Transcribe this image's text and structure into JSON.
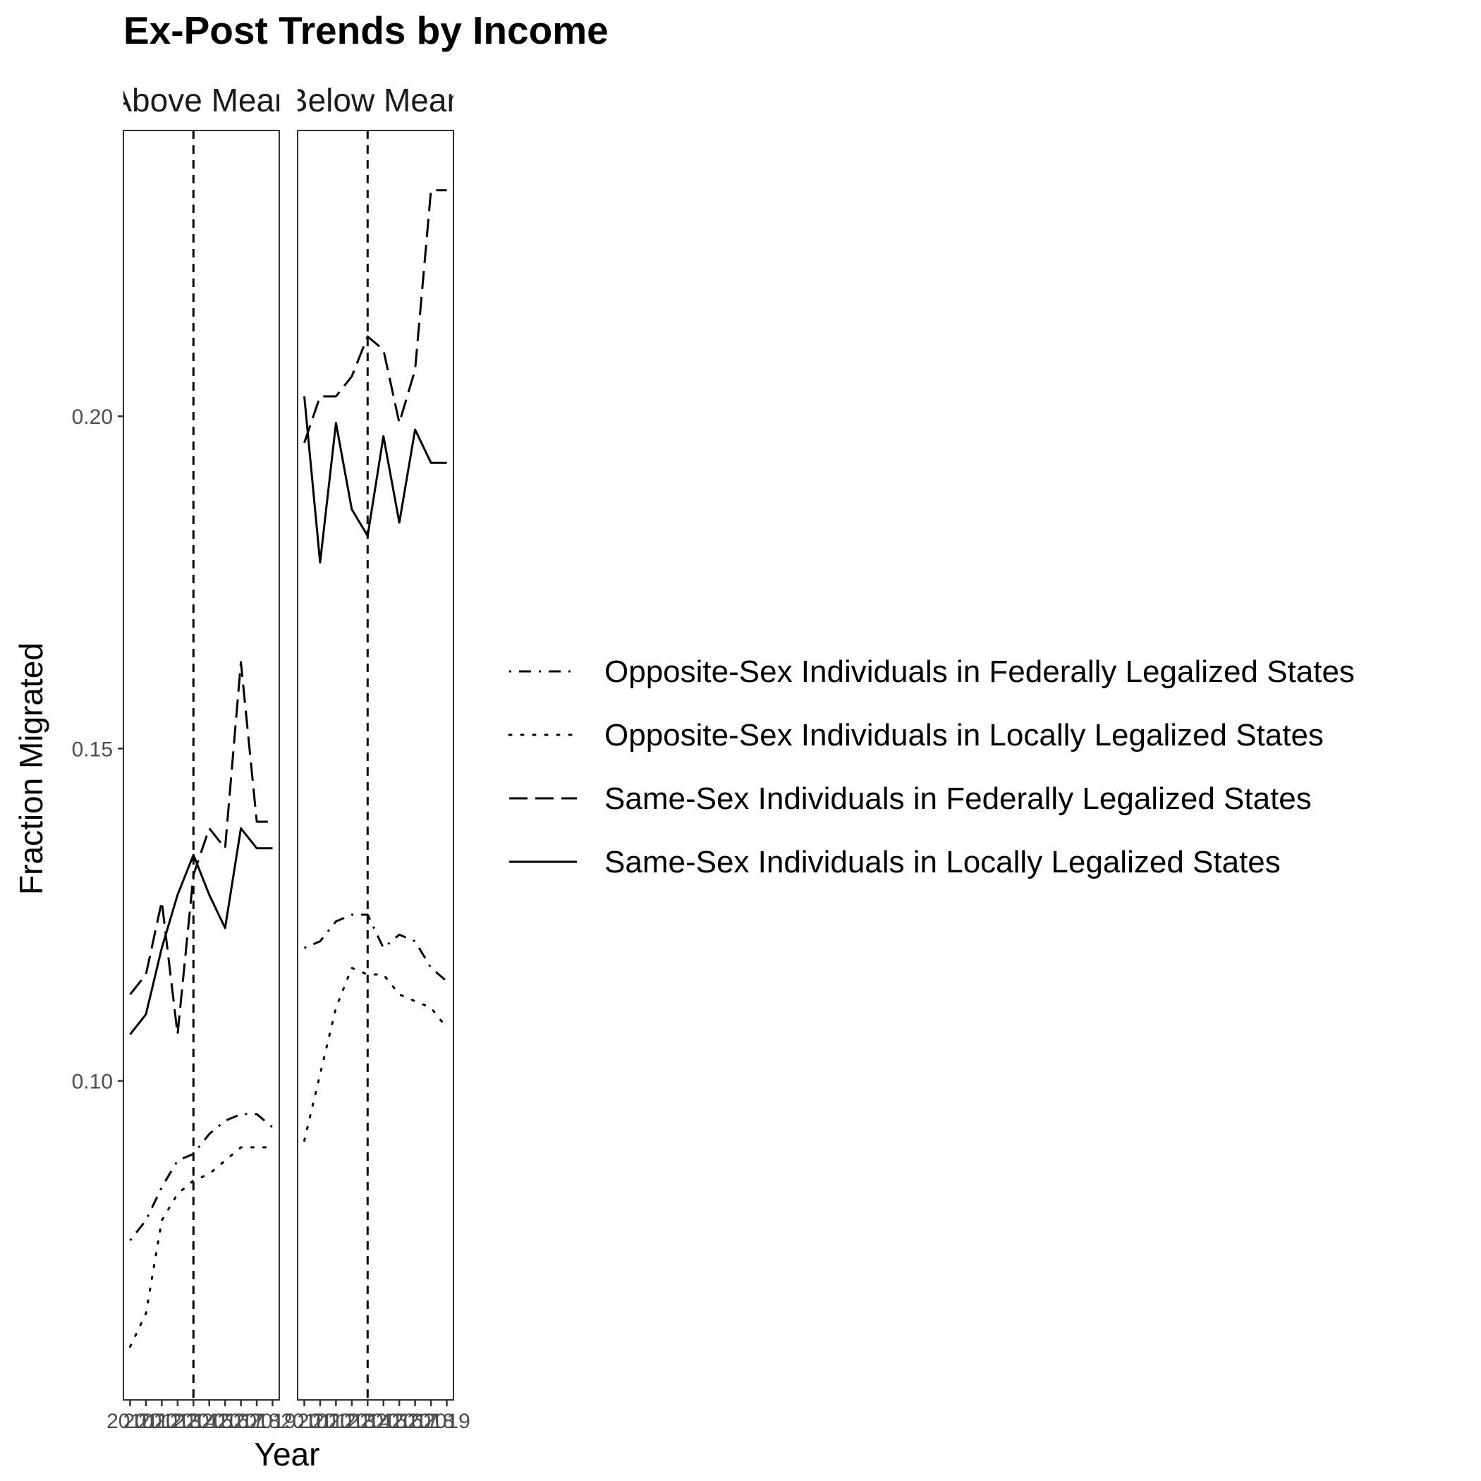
{
  "chart_data": {
    "type": "line",
    "title": "Ex-Post Trends by Income",
    "xlabel": "Year",
    "ylabel": "Fraction Migrated",
    "x": [
      2010,
      2011,
      2012,
      2013,
      2014,
      2015,
      2016,
      2017,
      2018,
      2019
    ],
    "x_tick_labels": [
      "2010",
      "2011",
      "2012",
      "2013",
      "2014",
      "2015",
      "2016",
      "2017",
      "2018",
      "2019"
    ],
    "ylim": [
      0.052,
      0.243
    ],
    "y_ticks": [
      0.1,
      0.15,
      0.2
    ],
    "y_tick_labels": [
      "0.10",
      "0.15",
      "0.20"
    ],
    "reference_line_x": 2014,
    "grid": false,
    "legend_position": "right",
    "legend_entries": [
      {
        "label": "Opposite-Sex Individuals in Federally Legalized States",
        "style": "dotdash"
      },
      {
        "label": "Opposite-Sex Individuals in Locally Legalized States",
        "style": "dotted"
      },
      {
        "label": "Same-Sex Individuals in Federally Legalized States",
        "style": "longdash"
      },
      {
        "label": "Same-Sex Individuals in Locally Legalized States",
        "style": "solid"
      }
    ],
    "panels": [
      {
        "label": "Above Mean",
        "series": [
          {
            "name": "Opposite-Sex Individuals in Federally Legalized States",
            "style": "dotdash",
            "values": [
              0.076,
              0.079,
              0.084,
              0.088,
              0.089,
              0.092,
              0.094,
              0.095,
              0.095,
              0.093
            ]
          },
          {
            "name": "Opposite-Sex Individuals in Locally Legalized States",
            "style": "dotted",
            "values": [
              0.06,
              0.065,
              0.079,
              0.083,
              0.085,
              0.086,
              0.088,
              0.09,
              0.09,
              0.09
            ]
          },
          {
            "name": "Same-Sex Individuals in Federally Legalized States",
            "style": "longdash",
            "values": [
              0.113,
              0.116,
              0.127,
              0.107,
              0.131,
              0.138,
              0.135,
              0.163,
              0.139,
              0.139
            ]
          },
          {
            "name": "Same-Sex Individuals in Locally Legalized States",
            "style": "solid",
            "values": [
              0.107,
              0.11,
              0.12,
              0.128,
              0.134,
              0.128,
              0.123,
              0.138,
              0.135,
              0.135
            ]
          }
        ]
      },
      {
        "label": "Below Mean",
        "series": [
          {
            "name": "Opposite-Sex Individuals in Federally Legalized States",
            "style": "dotdash",
            "values": [
              0.12,
              0.121,
              0.124,
              0.125,
              0.125,
              0.12,
              0.122,
              0.121,
              0.117,
              0.115
            ]
          },
          {
            "name": "Opposite-Sex Individuals in Locally Legalized States",
            "style": "dotted",
            "values": [
              0.091,
              0.101,
              0.111,
              0.117,
              0.116,
              0.116,
              0.113,
              0.112,
              0.111,
              0.108
            ]
          },
          {
            "name": "Same-Sex Individuals in Federally Legalized States",
            "style": "longdash",
            "values": [
              0.196,
              0.203,
              0.203,
              0.206,
              0.212,
              0.21,
              0.199,
              0.207,
              0.234,
              0.234
            ]
          },
          {
            "name": "Same-Sex Individuals in Locally Legalized States",
            "style": "solid",
            "values": [
              0.203,
              0.178,
              0.199,
              0.186,
              0.182,
              0.197,
              0.184,
              0.198,
              0.193,
              0.193
            ]
          }
        ]
      }
    ]
  }
}
